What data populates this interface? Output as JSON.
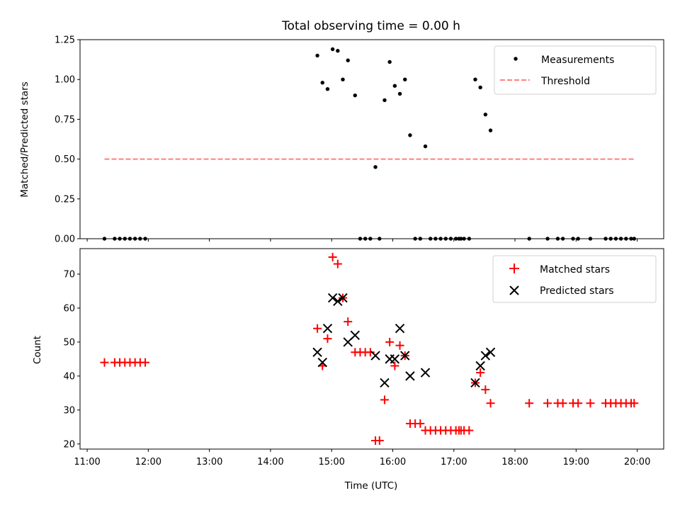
{
  "chart_data": [
    {
      "type": "scatter",
      "title": "Total observing time = 0.00 h",
      "xlabel": "",
      "ylabel": "Matched/Predicted stars",
      "ylim": [
        0,
        1.25
      ],
      "yticks": [
        "0.00",
        "0.25",
        "0.50",
        "0.75",
        "1.00",
        "1.25"
      ],
      "legend": {
        "position": "top-right",
        "entries": [
          {
            "label": "Measurements",
            "marker": "dot",
            "color": "#000000"
          },
          {
            "label": "Threshold",
            "marker": "dashed-line",
            "color": "#ff7f7f"
          }
        ]
      },
      "threshold": {
        "y": 0.5,
        "x_start": "11:17",
        "x_end": "19:57",
        "color": "#ff7f7f"
      },
      "series": [
        {
          "name": "Measurements",
          "color": "#000000",
          "points": [
            [
              "11:17",
              0
            ],
            [
              "11:27",
              0
            ],
            [
              "11:32",
              0
            ],
            [
              "11:37",
              0
            ],
            [
              "11:42",
              0
            ],
            [
              "11:47",
              0
            ],
            [
              "11:52",
              0
            ],
            [
              "11:57",
              0
            ],
            [
              "14:46",
              1.15
            ],
            [
              "14:51",
              0.98
            ],
            [
              "14:56",
              0.94
            ],
            [
              "15:01",
              1.19
            ],
            [
              "15:06",
              1.18
            ],
            [
              "15:11",
              1.0
            ],
            [
              "15:16",
              1.12
            ],
            [
              "15:23",
              0.9
            ],
            [
              "15:28",
              0
            ],
            [
              "15:33",
              0
            ],
            [
              "15:38",
              0
            ],
            [
              "15:43",
              0.45
            ],
            [
              "15:47",
              0
            ],
            [
              "15:52",
              0.87
            ],
            [
              "15:57",
              1.11
            ],
            [
              "16:02",
              0.96
            ],
            [
              "16:07",
              0.91
            ],
            [
              "16:12",
              1.0
            ],
            [
              "16:17",
              0.65
            ],
            [
              "16:22",
              0
            ],
            [
              "16:27",
              0
            ],
            [
              "16:32",
              0.58
            ],
            [
              "16:37",
              0
            ],
            [
              "16:42",
              0
            ],
            [
              "16:47",
              0
            ],
            [
              "16:52",
              0
            ],
            [
              "16:57",
              0
            ],
            [
              "17:02",
              0
            ],
            [
              "17:05",
              0
            ],
            [
              "17:07",
              0
            ],
            [
              "17:10",
              0
            ],
            [
              "17:15",
              0
            ],
            [
              "17:21",
              1.0
            ],
            [
              "17:26",
              0.95
            ],
            [
              "17:31",
              0.78
            ],
            [
              "17:36",
              0.68
            ],
            [
              "18:14",
              0
            ],
            [
              "18:32",
              0
            ],
            [
              "18:42",
              0
            ],
            [
              "18:47",
              0
            ],
            [
              "18:57",
              0
            ],
            [
              "19:02",
              0
            ],
            [
              "19:14",
              0
            ],
            [
              "19:29",
              0
            ],
            [
              "19:34",
              0
            ],
            [
              "19:39",
              0
            ],
            [
              "19:44",
              0
            ],
            [
              "19:49",
              0
            ],
            [
              "19:54",
              0
            ],
            [
              "19:57",
              0
            ]
          ]
        }
      ]
    },
    {
      "type": "scatter",
      "title": "",
      "xlabel": "Time (UTC)",
      "ylabel": "Count",
      "ylim": [
        18.5,
        77.5
      ],
      "yticks": [
        "20",
        "30",
        "40",
        "50",
        "60",
        "70"
      ],
      "xlim": [
        "10:53",
        "20:26"
      ],
      "xticks": [
        "11:00",
        "12:00",
        "13:00",
        "14:00",
        "15:00",
        "16:00",
        "17:00",
        "18:00",
        "19:00",
        "20:00"
      ],
      "legend": {
        "position": "top-right",
        "entries": [
          {
            "label": "Matched stars",
            "marker": "plus",
            "color": "#ff0000"
          },
          {
            "label": "Predicted stars",
            "marker": "x",
            "color": "#000000"
          }
        ]
      },
      "series": [
        {
          "name": "Matched stars",
          "color": "#ff0000",
          "points": [
            [
              "11:17",
              44
            ],
            [
              "11:27",
              44
            ],
            [
              "11:32",
              44
            ],
            [
              "11:37",
              44
            ],
            [
              "11:42",
              44
            ],
            [
              "11:47",
              44
            ],
            [
              "11:52",
              44
            ],
            [
              "11:57",
              44
            ],
            [
              "14:46",
              54
            ],
            [
              "14:51",
              43
            ],
            [
              "14:56",
              51
            ],
            [
              "15:01",
              75
            ],
            [
              "15:06",
              73
            ],
            [
              "15:11",
              63
            ],
            [
              "15:16",
              56
            ],
            [
              "15:23",
              47
            ],
            [
              "15:28",
              47
            ],
            [
              "15:33",
              47
            ],
            [
              "15:38",
              47
            ],
            [
              "15:43",
              21
            ],
            [
              "15:47",
              21
            ],
            [
              "15:52",
              33
            ],
            [
              "15:57",
              50
            ],
            [
              "16:02",
              43
            ],
            [
              "16:07",
              49
            ],
            [
              "16:12",
              46
            ],
            [
              "16:17",
              26
            ],
            [
              "16:22",
              26
            ],
            [
              "16:27",
              26
            ],
            [
              "16:32",
              24
            ],
            [
              "16:37",
              24
            ],
            [
              "16:42",
              24
            ],
            [
              "16:47",
              24
            ],
            [
              "16:52",
              24
            ],
            [
              "16:57",
              24
            ],
            [
              "17:02",
              24
            ],
            [
              "17:05",
              24
            ],
            [
              "17:07",
              24
            ],
            [
              "17:10",
              24
            ],
            [
              "17:15",
              24
            ],
            [
              "17:21",
              38
            ],
            [
              "17:26",
              41
            ],
            [
              "17:31",
              36
            ],
            [
              "17:36",
              32
            ],
            [
              "18:14",
              32
            ],
            [
              "18:32",
              32
            ],
            [
              "18:42",
              32
            ],
            [
              "18:47",
              32
            ],
            [
              "18:57",
              32
            ],
            [
              "19:02",
              32
            ],
            [
              "19:14",
              32
            ],
            [
              "19:29",
              32
            ],
            [
              "19:34",
              32
            ],
            [
              "19:39",
              32
            ],
            [
              "19:44",
              32
            ],
            [
              "19:49",
              32
            ],
            [
              "19:54",
              32
            ],
            [
              "19:57",
              32
            ]
          ]
        },
        {
          "name": "Predicted stars",
          "color": "#000000",
          "points": [
            [
              "14:46",
              47
            ],
            [
              "14:51",
              44
            ],
            [
              "14:56",
              54
            ],
            [
              "15:01",
              63
            ],
            [
              "15:06",
              62
            ],
            [
              "15:11",
              63
            ],
            [
              "15:16",
              50
            ],
            [
              "15:23",
              52
            ],
            [
              "15:43",
              46
            ],
            [
              "15:52",
              38
            ],
            [
              "15:57",
              45
            ],
            [
              "16:02",
              45
            ],
            [
              "16:07",
              54
            ],
            [
              "16:12",
              46
            ],
            [
              "16:17",
              40
            ],
            [
              "16:32",
              41
            ],
            [
              "17:21",
              38
            ],
            [
              "17:26",
              43
            ],
            [
              "17:31",
              46
            ],
            [
              "17:36",
              47
            ]
          ]
        }
      ]
    }
  ]
}
